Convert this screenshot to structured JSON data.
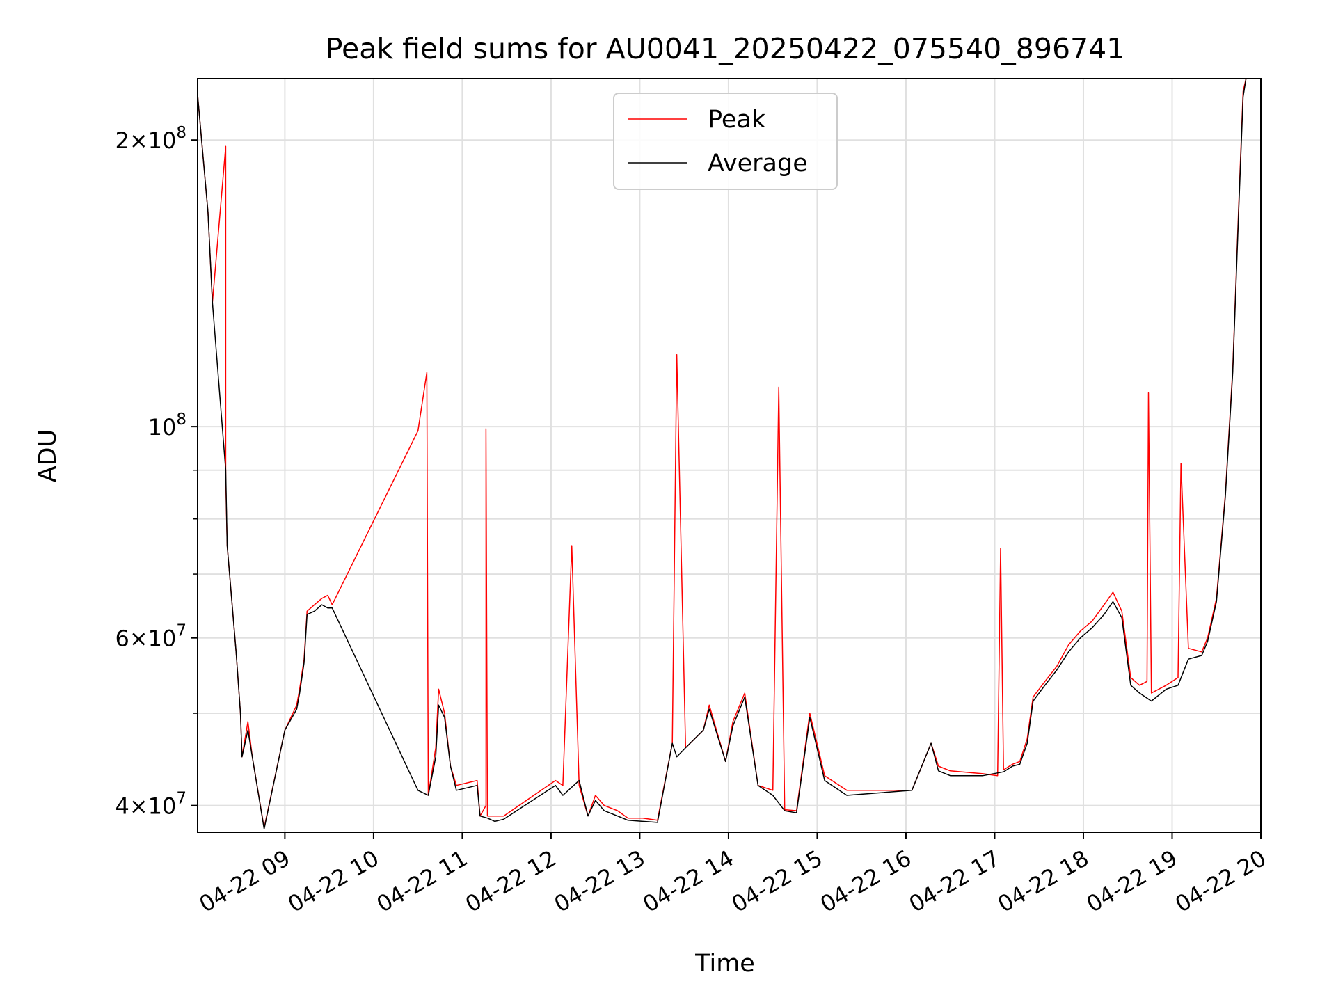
{
  "chart_data": {
    "type": "line",
    "title": "Peak field sums for AU0041_20250422_075540_896741",
    "xlabel": "Time",
    "ylabel": "ADU",
    "yscale": "log",
    "ylim": [
      37500000,
      232000000
    ],
    "xlim": [
      "2025-04-22 08:01",
      "2025-04-22 20:00"
    ],
    "grid": true,
    "legend_position": "upper center",
    "x_ticks": [
      {
        "at": "2025-04-22 09:00",
        "label": "04-22 09"
      },
      {
        "at": "2025-04-22 10:00",
        "label": "04-22 10"
      },
      {
        "at": "2025-04-22 11:00",
        "label": "04-22 11"
      },
      {
        "at": "2025-04-22 12:00",
        "label": "04-22 12"
      },
      {
        "at": "2025-04-22 13:00",
        "label": "04-22 13"
      },
      {
        "at": "2025-04-22 14:00",
        "label": "04-22 14"
      },
      {
        "at": "2025-04-22 15:00",
        "label": "04-22 15"
      },
      {
        "at": "2025-04-22 16:00",
        "label": "04-22 16"
      },
      {
        "at": "2025-04-22 17:00",
        "label": "04-22 17"
      },
      {
        "at": "2025-04-22 18:00",
        "label": "04-22 18"
      },
      {
        "at": "2025-04-22 19:00",
        "label": "04-22 19"
      },
      {
        "at": "2025-04-22 20:00",
        "label": "04-22 20"
      }
    ],
    "y_ticks": [
      {
        "value": 40000000,
        "mantissa": "4",
        "base": "10",
        "exp": "7"
      },
      {
        "value": 60000000,
        "mantissa": "6",
        "base": "10",
        "exp": "7"
      },
      {
        "value": 100000000,
        "mantissa": "",
        "base": "10",
        "exp": "8"
      },
      {
        "value": 200000000,
        "mantissa": "2",
        "base": "10",
        "exp": "8"
      }
    ],
    "y_minor_ticks": [
      50000000,
      70000000,
      80000000,
      90000000
    ],
    "series": [
      {
        "name": "Peak",
        "color": "#ff0000",
        "points": [
          [
            "2025-04-22 08:01",
            223000000
          ],
          [
            "2025-04-22 08:08",
            168000000
          ],
          [
            "2025-04-22 08:11",
            135000000
          ],
          [
            "2025-04-22 08:20",
            197000000
          ],
          [
            "2025-04-22 08:20",
            88000000
          ],
          [
            "2025-04-22 08:21",
            75000000
          ],
          [
            "2025-04-22 08:27",
            58000000
          ],
          [
            "2025-04-22 08:30",
            50000000
          ],
          [
            "2025-04-22 08:31",
            45000000
          ],
          [
            "2025-04-22 08:35",
            49000000
          ],
          [
            "2025-04-22 08:38",
            45000000
          ],
          [
            "2025-04-22 08:46",
            37900000
          ],
          [
            "2025-04-22 09:00",
            48000000
          ],
          [
            "2025-04-22 09:08",
            51000000
          ],
          [
            "2025-04-22 09:10",
            53000000
          ],
          [
            "2025-04-22 09:13",
            57000000
          ],
          [
            "2025-04-22 09:15",
            64000000
          ],
          [
            "2025-04-22 09:20",
            65000000
          ],
          [
            "2025-04-22 09:25",
            66000000
          ],
          [
            "2025-04-22 09:29",
            66500000
          ],
          [
            "2025-04-22 09:32",
            65000000
          ],
          [
            "2025-04-22 10:30",
            99000000
          ],
          [
            "2025-04-22 10:36",
            114000000
          ],
          [
            "2025-04-22 10:37",
            41000000
          ],
          [
            "2025-04-22 10:42",
            46000000
          ],
          [
            "2025-04-22 10:44",
            53000000
          ],
          [
            "2025-04-22 10:48",
            50000000
          ],
          [
            "2025-04-22 10:52",
            44000000
          ],
          [
            "2025-04-22 10:56",
            42000000
          ],
          [
            "2025-04-22 11:10",
            42500000
          ],
          [
            "2025-04-22 11:12",
            39000000
          ],
          [
            "2025-04-22 11:16",
            40000000
          ],
          [
            "2025-04-22 11:16",
            99500000
          ],
          [
            "2025-04-22 11:17",
            39000000
          ],
          [
            "2025-04-22 11:22",
            39000000
          ],
          [
            "2025-04-22 11:28",
            39000000
          ],
          [
            "2025-04-22 12:03",
            42500000
          ],
          [
            "2025-04-22 12:08",
            42000000
          ],
          [
            "2025-04-22 12:14",
            75000000
          ],
          [
            "2025-04-22 12:19",
            42000000
          ],
          [
            "2025-04-22 12:25",
            39000000
          ],
          [
            "2025-04-22 12:30",
            41000000
          ],
          [
            "2025-04-22 12:36",
            40000000
          ],
          [
            "2025-04-22 12:45",
            39500000
          ],
          [
            "2025-04-22 12:52",
            38800000
          ],
          [
            "2025-04-22 13:02",
            38800000
          ],
          [
            "2025-04-22 13:12",
            38600000
          ],
          [
            "2025-04-22 13:22",
            46500000
          ],
          [
            "2025-04-22 13:25",
            119000000
          ],
          [
            "2025-04-22 13:31",
            46000000
          ],
          [
            "2025-04-22 13:43",
            48000000
          ],
          [
            "2025-04-22 13:47",
            51000000
          ],
          [
            "2025-04-22 13:58",
            44500000
          ],
          [
            "2025-04-22 14:03",
            49000000
          ],
          [
            "2025-04-22 14:11",
            52500000
          ],
          [
            "2025-04-22 14:20",
            42000000
          ],
          [
            "2025-04-22 14:30",
            41500000
          ],
          [
            "2025-04-22 14:34",
            110000000
          ],
          [
            "2025-04-22 14:38",
            39600000
          ],
          [
            "2025-04-22 14:46",
            39500000
          ],
          [
            "2025-04-22 14:55",
            50000000
          ],
          [
            "2025-04-22 15:05",
            43000000
          ],
          [
            "2025-04-22 15:20",
            41500000
          ],
          [
            "2025-04-22 16:04",
            41500000
          ],
          [
            "2025-04-22 16:17",
            46500000
          ],
          [
            "2025-04-22 16:22",
            44000000
          ],
          [
            "2025-04-22 16:30",
            43500000
          ],
          [
            "2025-04-22 16:52",
            43200000
          ],
          [
            "2025-04-22 17:02",
            43000000
          ],
          [
            "2025-04-22 17:04",
            74500000
          ],
          [
            "2025-04-22 17:06",
            43600000
          ],
          [
            "2025-04-22 17:12",
            44200000
          ],
          [
            "2025-04-22 17:17",
            44500000
          ],
          [
            "2025-04-22 17:22",
            47000000
          ],
          [
            "2025-04-22 17:26",
            52000000
          ],
          [
            "2025-04-22 17:34",
            54000000
          ],
          [
            "2025-04-22 17:42",
            56000000
          ],
          [
            "2025-04-22 17:50",
            59000000
          ],
          [
            "2025-04-22 17:58",
            61000000
          ],
          [
            "2025-04-22 18:06",
            62500000
          ],
          [
            "2025-04-22 18:14",
            65000000
          ],
          [
            "2025-04-22 18:20",
            67000000
          ],
          [
            "2025-04-22 18:26",
            64000000
          ],
          [
            "2025-04-22 18:32",
            54500000
          ],
          [
            "2025-04-22 18:38",
            53500000
          ],
          [
            "2025-04-22 18:43",
            54000000
          ],
          [
            "2025-04-22 18:44",
            108500000
          ],
          [
            "2025-04-22 18:46",
            52500000
          ],
          [
            "2025-04-22 18:56",
            53500000
          ],
          [
            "2025-04-22 19:04",
            54500000
          ],
          [
            "2025-04-22 19:06",
            91500000
          ],
          [
            "2025-04-22 19:11",
            58500000
          ],
          [
            "2025-04-22 19:20",
            58000000
          ],
          [
            "2025-04-22 19:24",
            60000000
          ],
          [
            "2025-04-22 19:30",
            66000000
          ],
          [
            "2025-04-22 19:36",
            85000000
          ],
          [
            "2025-04-22 19:41",
            115000000
          ],
          [
            "2025-04-22 19:45",
            170000000
          ],
          [
            "2025-04-22 19:48",
            225000000
          ],
          [
            "2025-04-22 19:50",
            232000000
          ]
        ]
      },
      {
        "name": "Average",
        "color": "#000000",
        "points": [
          [
            "2025-04-22 08:01",
            223000000
          ],
          [
            "2025-04-22 08:08",
            168000000
          ],
          [
            "2025-04-22 08:11",
            135000000
          ],
          [
            "2025-04-22 08:20",
            90000000
          ],
          [
            "2025-04-22 08:21",
            75000000
          ],
          [
            "2025-04-22 08:27",
            58000000
          ],
          [
            "2025-04-22 08:30",
            50000000
          ],
          [
            "2025-04-22 08:31",
            45000000
          ],
          [
            "2025-04-22 08:35",
            48000000
          ],
          [
            "2025-04-22 08:38",
            45000000
          ],
          [
            "2025-04-22 08:46",
            37800000
          ],
          [
            "2025-04-22 09:00",
            48000000
          ],
          [
            "2025-04-22 09:08",
            50500000
          ],
          [
            "2025-04-22 09:10",
            52500000
          ],
          [
            "2025-04-22 09:13",
            56500000
          ],
          [
            "2025-04-22 09:15",
            63500000
          ],
          [
            "2025-04-22 09:20",
            64000000
          ],
          [
            "2025-04-22 09:25",
            65000000
          ],
          [
            "2025-04-22 09:29",
            64500000
          ],
          [
            "2025-04-22 09:32",
            64500000
          ],
          [
            "2025-04-22 10:30",
            41500000
          ],
          [
            "2025-04-22 10:37",
            41000000
          ],
          [
            "2025-04-22 10:42",
            45000000
          ],
          [
            "2025-04-22 10:44",
            51000000
          ],
          [
            "2025-04-22 10:48",
            49500000
          ],
          [
            "2025-04-22 10:52",
            44000000
          ],
          [
            "2025-04-22 10:56",
            41500000
          ],
          [
            "2025-04-22 11:10",
            42000000
          ],
          [
            "2025-04-22 11:12",
            39000000
          ],
          [
            "2025-04-22 11:17",
            38800000
          ],
          [
            "2025-04-22 11:22",
            38500000
          ],
          [
            "2025-04-22 11:28",
            38700000
          ],
          [
            "2025-04-22 12:03",
            42000000
          ],
          [
            "2025-04-22 12:08",
            41000000
          ],
          [
            "2025-04-22 12:19",
            42500000
          ],
          [
            "2025-04-22 12:25",
            39000000
          ],
          [
            "2025-04-22 12:30",
            40500000
          ],
          [
            "2025-04-22 12:36",
            39500000
          ],
          [
            "2025-04-22 12:45",
            39000000
          ],
          [
            "2025-04-22 12:52",
            38600000
          ],
          [
            "2025-04-22 13:02",
            38500000
          ],
          [
            "2025-04-22 13:12",
            38400000
          ],
          [
            "2025-04-22 13:22",
            46500000
          ],
          [
            "2025-04-22 13:25",
            45000000
          ],
          [
            "2025-04-22 13:31",
            46000000
          ],
          [
            "2025-04-22 13:43",
            48000000
          ],
          [
            "2025-04-22 13:47",
            50500000
          ],
          [
            "2025-04-22 13:58",
            44500000
          ],
          [
            "2025-04-22 14:03",
            48500000
          ],
          [
            "2025-04-22 14:11",
            52000000
          ],
          [
            "2025-04-22 14:20",
            42000000
          ],
          [
            "2025-04-22 14:30",
            41000000
          ],
          [
            "2025-04-22 14:38",
            39500000
          ],
          [
            "2025-04-22 14:46",
            39300000
          ],
          [
            "2025-04-22 14:55",
            49500000
          ],
          [
            "2025-04-22 15:05",
            42500000
          ],
          [
            "2025-04-22 15:20",
            41000000
          ],
          [
            "2025-04-22 16:04",
            41500000
          ],
          [
            "2025-04-22 16:17",
            46500000
          ],
          [
            "2025-04-22 16:22",
            43500000
          ],
          [
            "2025-04-22 16:30",
            43000000
          ],
          [
            "2025-04-22 16:52",
            43000000
          ],
          [
            "2025-04-22 17:06",
            43400000
          ],
          [
            "2025-04-22 17:12",
            44000000
          ],
          [
            "2025-04-22 17:17",
            44200000
          ],
          [
            "2025-04-22 17:22",
            46500000
          ],
          [
            "2025-04-22 17:26",
            51500000
          ],
          [
            "2025-04-22 17:34",
            53500000
          ],
          [
            "2025-04-22 17:42",
            55500000
          ],
          [
            "2025-04-22 17:50",
            58000000
          ],
          [
            "2025-04-22 17:58",
            60000000
          ],
          [
            "2025-04-22 18:06",
            61500000
          ],
          [
            "2025-04-22 18:14",
            63500000
          ],
          [
            "2025-04-22 18:20",
            65500000
          ],
          [
            "2025-04-22 18:26",
            63000000
          ],
          [
            "2025-04-22 18:32",
            53500000
          ],
          [
            "2025-04-22 18:38",
            52500000
          ],
          [
            "2025-04-22 18:46",
            51500000
          ],
          [
            "2025-04-22 18:56",
            53000000
          ],
          [
            "2025-04-22 19:04",
            53500000
          ],
          [
            "2025-04-22 19:11",
            57000000
          ],
          [
            "2025-04-22 19:20",
            57500000
          ],
          [
            "2025-04-22 19:24",
            59500000
          ],
          [
            "2025-04-22 19:30",
            65500000
          ],
          [
            "2025-04-22 19:36",
            84500000
          ],
          [
            "2025-04-22 19:41",
            114000000
          ],
          [
            "2025-04-22 19:45",
            168000000
          ],
          [
            "2025-04-22 19:48",
            222000000
          ],
          [
            "2025-04-22 19:50",
            232000000
          ]
        ]
      }
    ]
  }
}
